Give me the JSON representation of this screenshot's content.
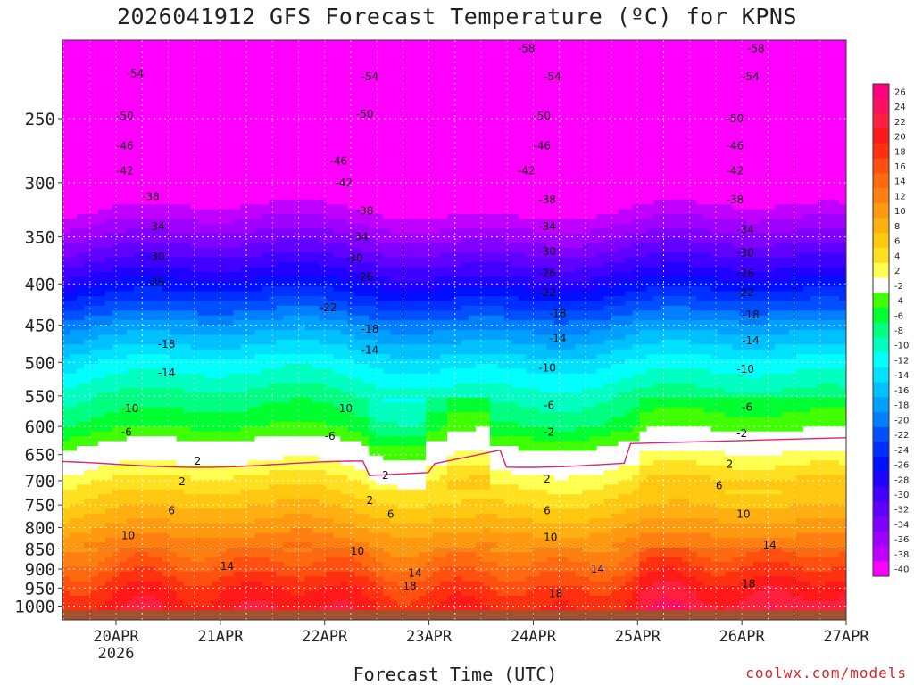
{
  "title": "2026041912 GFS Forecast Temperature (ºC) for KPNS",
  "xlabel": "Forecast Time (UTC)",
  "credit": "coolwx.com/models",
  "colors": {
    "ground": "#a0522d",
    "freezing_line": "#dd2277"
  },
  "chart_data": {
    "type": "heatmap",
    "title": "2026041912 GFS Forecast Temperature (ºC) for KPNS",
    "xlabel": "Forecast Time (UTC)",
    "ylabel": "",
    "y_scale": "log-pressure",
    "y_inverted": true,
    "ylim": [
      1040,
      200
    ],
    "y_ticks": [
      250,
      300,
      350,
      400,
      450,
      500,
      550,
      600,
      650,
      700,
      750,
      800,
      850,
      900,
      950,
      1000
    ],
    "x_ticks": [
      {
        "label": "20APR",
        "sublabel": "2026"
      },
      {
        "label": "21APR",
        "sublabel": ""
      },
      {
        "label": "22APR",
        "sublabel": ""
      },
      {
        "label": "23APR",
        "sublabel": ""
      },
      {
        "label": "24APR",
        "sublabel": ""
      },
      {
        "label": "25APR",
        "sublabel": ""
      },
      {
        "label": "26APR",
        "sublabel": ""
      },
      {
        "label": "27APR",
        "sublabel": ""
      }
    ],
    "grid": true,
    "legend": "right",
    "colorbar": {
      "levels": [
        26,
        24,
        22,
        20,
        18,
        16,
        14,
        12,
        10,
        8,
        6,
        4,
        2,
        -2,
        -4,
        -6,
        -8,
        -10,
        -12,
        -14,
        -16,
        -18,
        -20,
        -22,
        -24,
        -26,
        -28,
        -30,
        -32,
        -34,
        -36,
        -38,
        -40
      ],
      "colors": [
        "#ff0080",
        "#ff1060",
        "#ff2040",
        "#ff1a1a",
        "#ff3010",
        "#ff5010",
        "#ff6a10",
        "#ff8010",
        "#ff9a10",
        "#ffb010",
        "#ffc810",
        "#ffe020",
        "#ffff50",
        "#ffffff",
        "#40ff00",
        "#00ff30",
        "#00ff80",
        "#00ffc0",
        "#00ffff",
        "#00e0ff",
        "#00c0ff",
        "#00a0ff",
        "#0080ff",
        "#0050ff",
        "#0030ff",
        "#0010ff",
        "#2000ff",
        "#4000ff",
        "#6000ff",
        "#8000ff",
        "#a000ff",
        "#c000ff",
        "#ff00ff"
      ]
    },
    "contour_labels": [
      {
        "x": 0.1,
        "p": 220,
        "v": "-54"
      },
      {
        "x": 2.35,
        "p": 222,
        "v": "-54"
      },
      {
        "x": 4.1,
        "p": 222,
        "v": "-54"
      },
      {
        "x": 6.0,
        "p": 222,
        "v": "-54"
      },
      {
        "x": 3.85,
        "p": 205,
        "v": "-58"
      },
      {
        "x": 6.05,
        "p": 205,
        "v": "-58"
      },
      {
        "x": 0.0,
        "p": 248,
        "v": "-50"
      },
      {
        "x": 2.3,
        "p": 247,
        "v": "-50"
      },
      {
        "x": 4.0,
        "p": 248,
        "v": "-50"
      },
      {
        "x": 5.85,
        "p": 250,
        "v": "-50"
      },
      {
        "x": 0.0,
        "p": 270,
        "v": "-46"
      },
      {
        "x": 2.05,
        "p": 282,
        "v": "-46"
      },
      {
        "x": 4.0,
        "p": 270,
        "v": "-46"
      },
      {
        "x": 5.85,
        "p": 270,
        "v": "-46"
      },
      {
        "x": 0.0,
        "p": 290,
        "v": "-42"
      },
      {
        "x": 2.1,
        "p": 300,
        "v": "-42"
      },
      {
        "x": 3.85,
        "p": 290,
        "v": "-42"
      },
      {
        "x": 5.85,
        "p": 290,
        "v": "-42"
      },
      {
        "x": 0.25,
        "p": 312,
        "v": "-38"
      },
      {
        "x": 2.3,
        "p": 325,
        "v": "-38"
      },
      {
        "x": 4.05,
        "p": 315,
        "v": "-38"
      },
      {
        "x": 5.85,
        "p": 315,
        "v": "-38"
      },
      {
        "x": 0.3,
        "p": 340,
        "v": "-34"
      },
      {
        "x": 2.25,
        "p": 350,
        "v": "-34"
      },
      {
        "x": 4.05,
        "p": 340,
        "v": "-34"
      },
      {
        "x": 5.95,
        "p": 343,
        "v": "-34"
      },
      {
        "x": 0.3,
        "p": 370,
        "v": "-30"
      },
      {
        "x": 2.2,
        "p": 372,
        "v": "-30"
      },
      {
        "x": 4.05,
        "p": 365,
        "v": "-30"
      },
      {
        "x": 5.95,
        "p": 366,
        "v": "-30"
      },
      {
        "x": 0.3,
        "p": 398,
        "v": "-26"
      },
      {
        "x": 2.3,
        "p": 392,
        "v": "-26"
      },
      {
        "x": 4.05,
        "p": 388,
        "v": "-26"
      },
      {
        "x": 5.95,
        "p": 388,
        "v": "-26"
      },
      {
        "x": 1.95,
        "p": 428,
        "v": "-22"
      },
      {
        "x": 4.05,
        "p": 410,
        "v": "-22"
      },
      {
        "x": 5.95,
        "p": 410,
        "v": "-22"
      },
      {
        "x": 0.4,
        "p": 475,
        "v": "-18"
      },
      {
        "x": 2.35,
        "p": 455,
        "v": "-18"
      },
      {
        "x": 4.15,
        "p": 435,
        "v": "-18"
      },
      {
        "x": 6.0,
        "p": 437,
        "v": "-18"
      },
      {
        "x": 0.4,
        "p": 515,
        "v": "-14"
      },
      {
        "x": 2.35,
        "p": 483,
        "v": "-14"
      },
      {
        "x": 4.15,
        "p": 467,
        "v": "-14"
      },
      {
        "x": 6.0,
        "p": 470,
        "v": "-14"
      },
      {
        "x": 0.05,
        "p": 570,
        "v": "-10"
      },
      {
        "x": 2.1,
        "p": 570,
        "v": "-10"
      },
      {
        "x": 4.05,
        "p": 508,
        "v": "-10"
      },
      {
        "x": 5.95,
        "p": 510,
        "v": "-10"
      },
      {
        "x": 0.05,
        "p": 610,
        "v": "-6"
      },
      {
        "x": 2.0,
        "p": 617,
        "v": "-6"
      },
      {
        "x": 4.1,
        "p": 565,
        "v": "-6"
      },
      {
        "x": 6.0,
        "p": 568,
        "v": "-6"
      },
      {
        "x": 4.1,
        "p": 610,
        "v": "-2"
      },
      {
        "x": 5.95,
        "p": 612,
        "v": "-2"
      },
      {
        "x": 0.75,
        "p": 662,
        "v": "2"
      },
      {
        "x": 2.55,
        "p": 690,
        "v": "2"
      },
      {
        "x": 0.6,
        "p": 702,
        "v": "2"
      },
      {
        "x": 2.4,
        "p": 740,
        "v": "2"
      },
      {
        "x": 4.1,
        "p": 697,
        "v": "2"
      },
      {
        "x": 5.85,
        "p": 668,
        "v": "2"
      },
      {
        "x": 0.5,
        "p": 762,
        "v": "6"
      },
      {
        "x": 2.6,
        "p": 770,
        "v": "6"
      },
      {
        "x": 4.1,
        "p": 762,
        "v": "6"
      },
      {
        "x": 5.75,
        "p": 710,
        "v": "6"
      },
      {
        "x": 0.05,
        "p": 818,
        "v": "10"
      },
      {
        "x": 2.25,
        "p": 855,
        "v": "10"
      },
      {
        "x": 4.1,
        "p": 822,
        "v": "10"
      },
      {
        "x": 5.95,
        "p": 770,
        "v": "10"
      },
      {
        "x": 1.0,
        "p": 893,
        "v": "14"
      },
      {
        "x": 2.8,
        "p": 910,
        "v": "14"
      },
      {
        "x": 4.55,
        "p": 900,
        "v": "14"
      },
      {
        "x": 6.2,
        "p": 840,
        "v": "14"
      },
      {
        "x": 2.75,
        "p": 945,
        "v": "18"
      },
      {
        "x": 4.15,
        "p": 965,
        "v": "18"
      },
      {
        "x": 6.0,
        "p": 938,
        "v": "18"
      }
    ]
  }
}
